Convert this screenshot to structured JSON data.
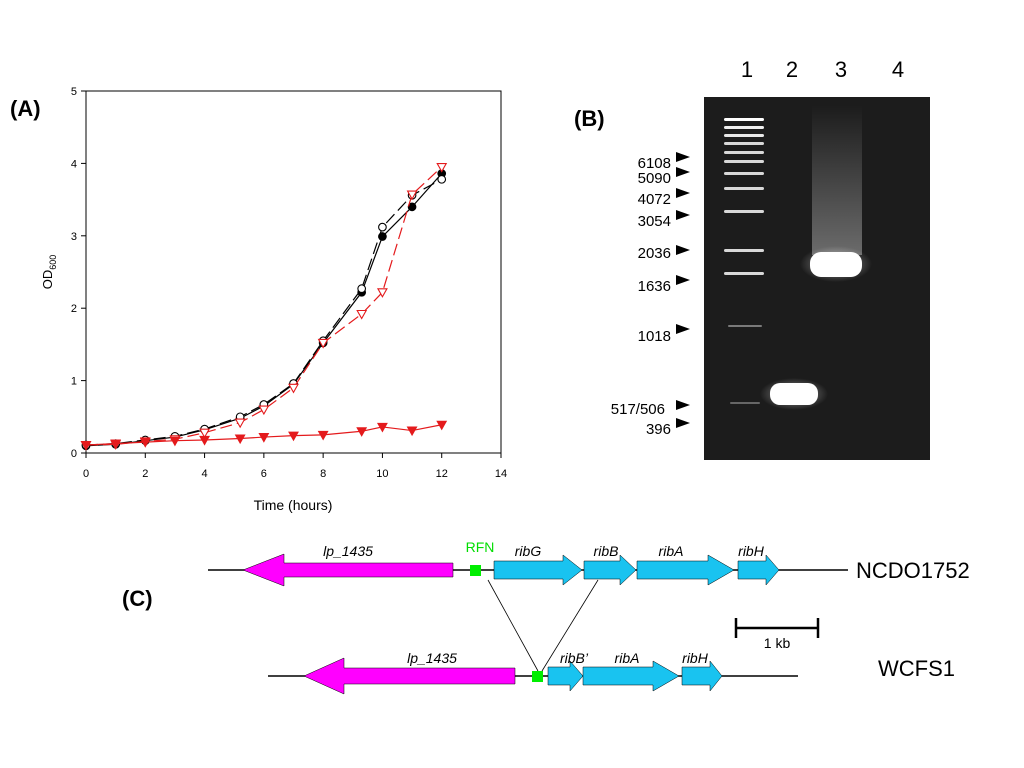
{
  "panels": {
    "a": "(A)",
    "b": "(B)",
    "c": "(C)"
  },
  "colors": {
    "black": "#000000",
    "red": "#e41a1c",
    "magenta": "#ff00ff",
    "cyan": "#19c3f0",
    "green": "#00ee00",
    "gel": "#1c1c1c"
  },
  "chart_data": {
    "type": "line",
    "title": "",
    "xlabel": "Time (hours)",
    "ylabel": "OD",
    "ylabel_sub": "600",
    "xlim": [
      0,
      14
    ],
    "ylim": [
      0,
      5
    ],
    "xticks": [
      "0",
      "2",
      "4",
      "6",
      "8",
      "10",
      "12",
      "14"
    ],
    "yticks": [
      "0",
      "1",
      "2",
      "3",
      "4",
      "5"
    ],
    "grid": false,
    "legend": "none",
    "series": [
      {
        "marker": "circle-filled",
        "color": "#000000",
        "dash": "solid",
        "x": [
          0,
          1,
          2,
          3,
          4,
          5.2,
          6,
          7,
          8,
          9.3,
          10,
          11,
          12
        ],
        "y": [
          0.1,
          0.12,
          0.17,
          0.22,
          0.32,
          0.48,
          0.65,
          0.95,
          1.52,
          2.22,
          2.99,
          3.4,
          3.86
        ]
      },
      {
        "marker": "circle-open",
        "color": "#000000",
        "dash": "long-dash",
        "x": [
          0,
          1,
          2,
          3,
          4,
          5.2,
          6,
          7,
          8,
          9.3,
          10,
          11,
          12
        ],
        "y": [
          0.11,
          0.13,
          0.18,
          0.23,
          0.33,
          0.5,
          0.67,
          0.96,
          1.55,
          2.27,
          3.12,
          3.56,
          3.78
        ]
      },
      {
        "marker": "triangle-down-open",
        "color": "#e41a1c",
        "dash": "long-dash",
        "x": [
          0,
          1,
          2,
          3,
          4,
          5.2,
          6,
          7,
          8,
          9.3,
          10,
          11,
          12
        ],
        "y": [
          0.11,
          0.12,
          0.16,
          0.19,
          0.28,
          0.42,
          0.6,
          0.9,
          1.52,
          1.92,
          2.22,
          3.57,
          3.95
        ]
      },
      {
        "marker": "triangle-down-filled",
        "color": "#e41a1c",
        "dash": "solid",
        "x": [
          0,
          1,
          2,
          3,
          4,
          5.2,
          6,
          7,
          8,
          9.3,
          10,
          11,
          12
        ],
        "y": [
          0.11,
          0.13,
          0.15,
          0.17,
          0.18,
          0.2,
          0.22,
          0.24,
          0.25,
          0.3,
          0.36,
          0.31,
          0.39
        ]
      }
    ]
  },
  "gel": {
    "lanes": [
      "1",
      "2",
      "3",
      "4"
    ],
    "markers": [
      "6108",
      "5090",
      "4072",
      "3054",
      "2036",
      "1636",
      "1018",
      "517/506",
      "396"
    ]
  },
  "genes": {
    "ncdo": {
      "strain": "NCDO1752",
      "rfn": "RFN",
      "lp": "lp_1435",
      "ribG": "ribG",
      "ribB": "ribB",
      "ribA": "ribA",
      "ribH": "ribH"
    },
    "wcfs": {
      "strain": "WCFS1",
      "lp": "lp_1435",
      "ribBp": "ribB’",
      "ribA": "ribA",
      "ribH": "ribH"
    },
    "scale": "1 kb"
  }
}
